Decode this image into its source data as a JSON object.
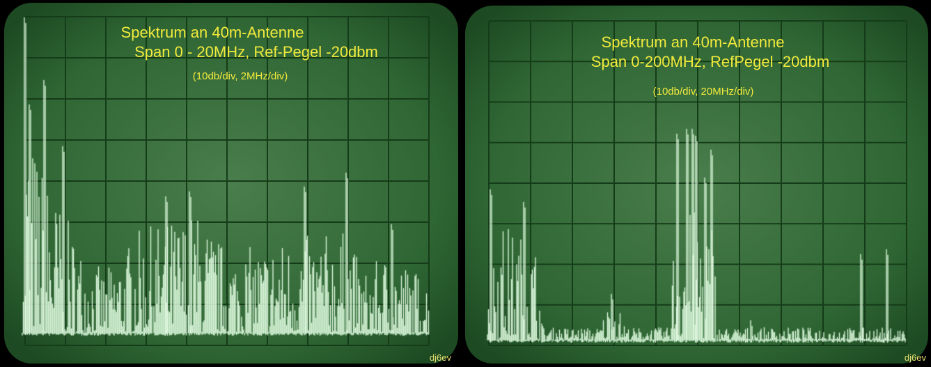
{
  "panels": [
    {
      "title": "Spektrum an 40m-Antenne",
      "subtitle": "Span 0 - 20MHz,  Ref-Pegel -20dbm",
      "scale": "(10db/div,  2MHz/div)",
      "credit": "dj6ev"
    },
    {
      "title": "Spektrum an 40m-Antenne",
      "subtitle": "Span 0-200MHz,  RefPegel -20dbm",
      "scale": "(10db/div,  20MHz/div)",
      "credit": "dj6ev"
    }
  ]
}
